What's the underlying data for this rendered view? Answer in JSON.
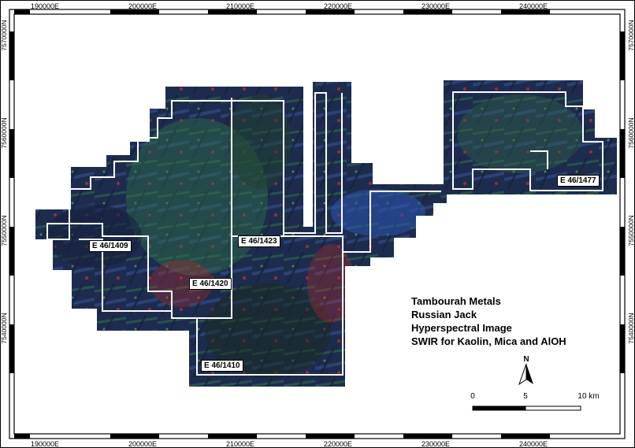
{
  "map": {
    "title_lines": [
      "Tambourah Metals",
      "Russian Jack",
      "Hyperspectral Image",
      "SWIR for Kaolin, Mica and AlOH"
    ],
    "easting_labels": [
      "190000E",
      "200000E",
      "210000E",
      "220000E",
      "230000E",
      "240000E"
    ],
    "northing_labels": [
      "7570000N",
      "7560000N",
      "7550000N",
      "7540000N"
    ],
    "tenements": [
      {
        "id": "E 46/1409"
      },
      {
        "id": "E 46/1420"
      },
      {
        "id": "E 46/1423"
      },
      {
        "id": "E 46/1410"
      },
      {
        "id": "E 46/1477"
      }
    ],
    "north_arrow": {
      "label": "N"
    },
    "scale_bar": {
      "ticks": [
        "0",
        "5",
        "10 km"
      ]
    },
    "colors": {
      "imagery_base": "#1b2a4a",
      "kaolin_red": "#d62a2a",
      "mica_green": "#3aa05a",
      "aloh_blue": "#2f4fa8",
      "boundary": "#ffffff",
      "frame": "#000000"
    }
  }
}
